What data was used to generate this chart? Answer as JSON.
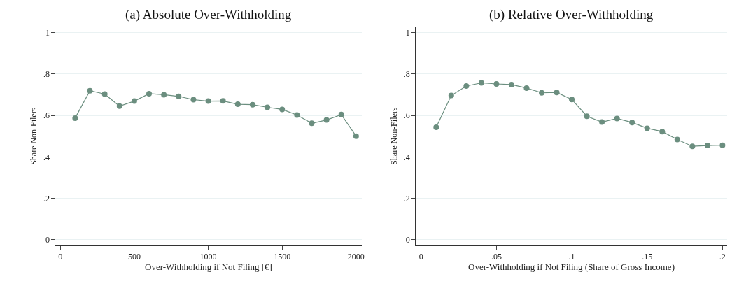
{
  "chart_data": [
    {
      "type": "line",
      "title": "(a) Absolute Over-Withholding",
      "xlabel": "Over-Withholding if Not Filing [€]",
      "ylabel": "Share Non-Filers",
      "x": [
        100,
        200,
        300,
        400,
        500,
        600,
        700,
        800,
        900,
        1000,
        1100,
        1200,
        1300,
        1400,
        1500,
        1600,
        1700,
        1800,
        1900,
        2000
      ],
      "series": [
        {
          "color": "#6b8e7f",
          "values": [
            0.587,
            0.719,
            0.703,
            0.645,
            0.669,
            0.705,
            0.7,
            0.692,
            0.676,
            0.669,
            0.67,
            0.654,
            0.652,
            0.639,
            0.629,
            0.602,
            0.562,
            0.578,
            0.604,
            0.5
          ]
        }
      ],
      "xlim": [
        -33,
        2037
      ],
      "xticks": [
        0,
        500,
        1000,
        1500,
        2000
      ],
      "ylim": [
        -0.027,
        1.027
      ],
      "yticks": [
        {
          "value": 0,
          "label": "0"
        },
        {
          "value": 0.2,
          "label": ".2"
        },
        {
          "value": 0.4,
          "label": ".4"
        },
        {
          "value": 0.6,
          "label": ".6"
        },
        {
          "value": 0.8,
          "label": ".8"
        },
        {
          "value": 1,
          "label": "1"
        }
      ],
      "grid": "y",
      "marker": "circle",
      "line_style": "solid"
    },
    {
      "type": "line",
      "title": "(b) Relative Over-Withholding",
      "xlabel": "Over-Withholding if Not Filing (Share of Gross Income)",
      "ylabel": "Share Non-Filers",
      "x": [
        0.01,
        0.02,
        0.03,
        0.04,
        0.05,
        0.06,
        0.07,
        0.08,
        0.09,
        0.1,
        0.11,
        0.12,
        0.13,
        0.14,
        0.15,
        0.16,
        0.17,
        0.18,
        0.19,
        0.2
      ],
      "series": [
        {
          "color": "#6b8e7f",
          "values": [
            0.543,
            0.696,
            0.742,
            0.757,
            0.752,
            0.749,
            0.732,
            0.709,
            0.711,
            0.677,
            0.596,
            0.568,
            0.585,
            0.566,
            0.538,
            0.522,
            0.484,
            0.451,
            0.455,
            0.456
          ]
        }
      ],
      "xlim": [
        -0.0035,
        0.203
      ],
      "xticks": [
        {
          "value": 0,
          "label": "0"
        },
        {
          "value": 0.05,
          "label": ".05"
        },
        {
          "value": 0.1,
          "label": ".1"
        },
        {
          "value": 0.15,
          "label": ".15"
        },
        {
          "value": 0.2,
          "label": ".2"
        }
      ],
      "ylim": [
        -0.027,
        1.027
      ],
      "yticks": [
        {
          "value": 0,
          "label": "0"
        },
        {
          "value": 0.2,
          "label": ".2"
        },
        {
          "value": 0.4,
          "label": ".4"
        },
        {
          "value": 0.6,
          "label": ".6"
        },
        {
          "value": 0.8,
          "label": ".8"
        },
        {
          "value": 1,
          "label": "1"
        }
      ],
      "grid": "y",
      "marker": "circle",
      "line_style": "solid"
    }
  ]
}
